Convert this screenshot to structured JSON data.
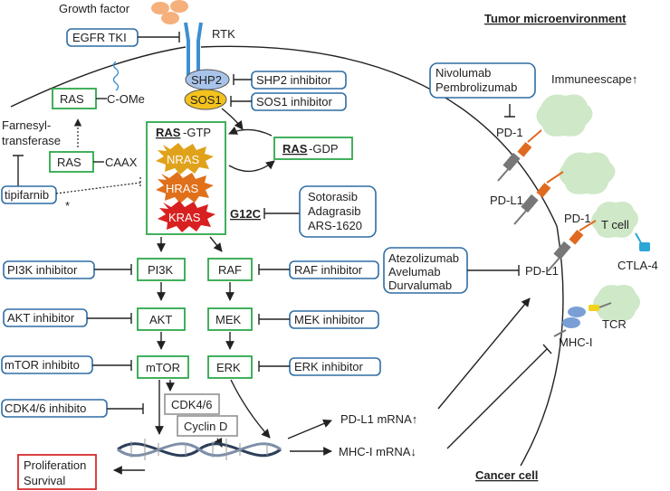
{
  "title_tme": "Tumor microenvironment",
  "title_cancer": "Cancer cell",
  "growth_factor": "Growth factor",
  "rtk": "RTK",
  "shp2": "SHP2",
  "sos1": "SOS1",
  "c_ome": "C-OMe",
  "caax": "CAAX",
  "ras": "RAS",
  "farnesyl_1": "Farnesyl-",
  "farnesyl_2": "transferase",
  "asterisk": "*",
  "ras_gtp_a": "RAS",
  "ras_gtp_b": "-GTP",
  "ras_gdp_a": "RAS",
  "ras_gdp_b": "-GDP",
  "nras": "NRAS",
  "hras": "HRAS",
  "kras": "KRAS",
  "g12c": "G12C",
  "pi3k": "PI3K",
  "akt": "AKT",
  "mtor": "mTOR",
  "raf": "RAF",
  "mek": "MEK",
  "erk": "ERK",
  "cdk46": "CDK4/6",
  "cyclin_d": "Cyclin D",
  "prolif_1": "Proliferation",
  "prolif_2": "Survival",
  "pdl1_mrna": "PD-L1 mRNA↑",
  "mhc_mrna": "MHC-I mRNA↓",
  "immune_escape": "Immuneescape↑",
  "pd1_top": "PD-1",
  "pdl1_left": "PD-L1",
  "pd1_mid": "PD-1",
  "tcell": "T cell",
  "ctla4": "CTLA-4",
  "pdl1_right": "PD-L1",
  "tcr": "TCR",
  "mhc1": "MHC-I",
  "drugs": {
    "egfr": "EGFR TKI",
    "shp2_inh": "SHP2 inhibitor",
    "sos1_inh": "SOS1 inhibitor",
    "tipifarnib": "tipifarnib",
    "g12c_1": "Sotorasib",
    "g12c_2": "Adagrasib",
    "g12c_3": "ARS-1620",
    "pi3k_inh": "PI3K inhibitor",
    "akt_inh": "AKT inhibitor",
    "mtor_inh": "mTOR inhibito",
    "cdk_inh": "CDK4/6 inhibito",
    "raf_inh": "RAF inhibitor",
    "mek_inh": "MEK inhibitor",
    "erk_inh": "ERK inhibitor",
    "pd1_1": "Nivolumab",
    "pd1_2": "Pembrolizumab",
    "pdl1_1": "Atezolizumab",
    "pdl1_2": "Avelumab",
    "pdl1_3": "Durvalumab"
  },
  "colors": {
    "nras": "#e0a21a",
    "hras": "#e0701a",
    "kras": "#d82020",
    "shp2": "#a9c4ea",
    "sos1": "#f3c21c",
    "growth_factor": "#f6b07c",
    "receptor": "#3d8fd0",
    "tcell": "#cfe8c8",
    "pd1": "#e06a20",
    "pdl1": "#777777",
    "ctla4": "#2aa6d8",
    "tcr": "#f2d21c",
    "mhc": "#7a9fd6"
  }
}
